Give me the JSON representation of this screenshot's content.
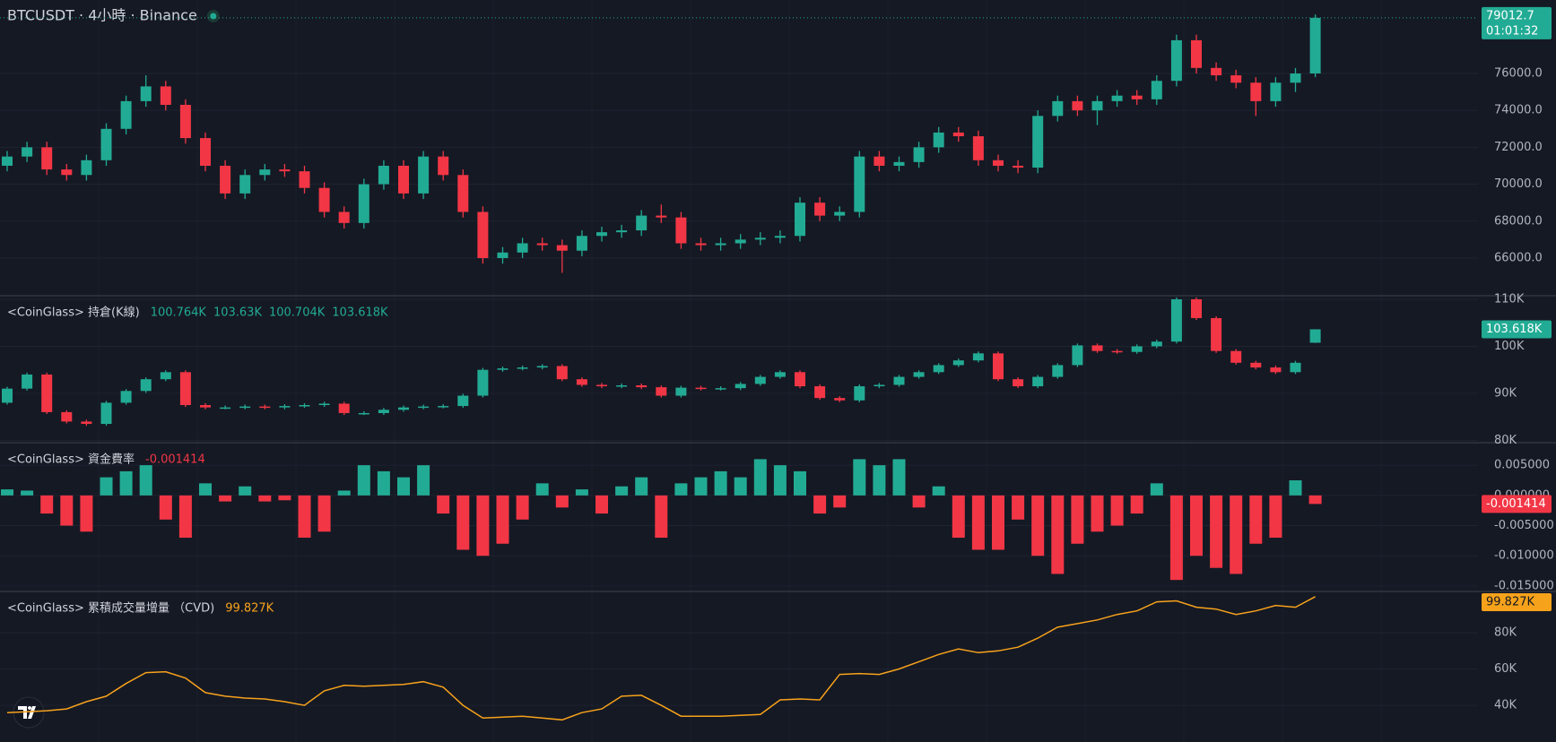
{
  "chart_data": [
    {
      "type": "candlestick",
      "title": "BTCUSDT · 4小時 · Binance",
      "countdown": "01:01:32",
      "open": [
        71000,
        71500,
        72000,
        70800,
        70500,
        71300,
        73000,
        74500,
        75300,
        74300,
        72500,
        71000,
        69500,
        70500,
        70800,
        70700,
        69800,
        68500,
        67900,
        70000,
        71000,
        69500,
        71500,
        70500,
        68500,
        66000,
        66300,
        66800,
        66700,
        66400,
        67200,
        67400,
        67500,
        68300,
        68200,
        66800,
        66700,
        66800,
        67000,
        67100,
        67200,
        69000,
        68300,
        68500,
        71500,
        71000,
        71200,
        72000,
        72800,
        72600,
        71300,
        71000,
        70900,
        73700,
        74500,
        74000,
        74500,
        74800,
        74600,
        75600,
        77800,
        76300,
        75900,
        75500,
        74500,
        75500,
        76000
      ],
      "high": [
        71800,
        72300,
        72300,
        71100,
        71600,
        73300,
        74800,
        75900,
        75600,
        74600,
        72800,
        71300,
        70800,
        71100,
        71100,
        71000,
        70100,
        68800,
        70300,
        71300,
        71300,
        71800,
        71800,
        70800,
        68800,
        66600,
        67100,
        67100,
        67000,
        67500,
        67700,
        67800,
        68600,
        68900,
        68500,
        67100,
        67100,
        67300,
        67400,
        67500,
        69300,
        69300,
        68800,
        71800,
        71800,
        71500,
        72300,
        73100,
        73100,
        72900,
        71600,
        71300,
        74000,
        74800,
        74800,
        74800,
        75100,
        75100,
        75900,
        78100,
        78100,
        76600,
        76200,
        75800,
        75800,
        76300,
        79200
      ],
      "low": [
        70700,
        71200,
        70500,
        70200,
        70200,
        71000,
        72700,
        74200,
        74000,
        72200,
        70700,
        69200,
        69200,
        70200,
        70400,
        69500,
        68200,
        67600,
        67600,
        69700,
        69200,
        69200,
        70200,
        68200,
        65700,
        65700,
        66000,
        66400,
        65200,
        66100,
        66900,
        67100,
        67200,
        67900,
        66500,
        66400,
        66400,
        66500,
        66700,
        66800,
        66900,
        68000,
        68000,
        68200,
        70700,
        70700,
        70900,
        71700,
        72300,
        71000,
        70700,
        70600,
        70600,
        73400,
        73700,
        73200,
        74200,
        74300,
        74300,
        75300,
        76000,
        75600,
        75200,
        73700,
        74200,
        75000,
        75800
      ],
      "close": [
        71500,
        72000,
        70800,
        70500,
        71300,
        73000,
        74500,
        75300,
        74300,
        72500,
        71000,
        69500,
        70500,
        70800,
        70700,
        69800,
        68500,
        67900,
        70000,
        71000,
        69500,
        71500,
        70500,
        68500,
        66000,
        66300,
        66800,
        66700,
        66400,
        67200,
        67400,
        67500,
        68300,
        68200,
        66800,
        66700,
        66800,
        67000,
        67100,
        67200,
        69000,
        68300,
        68500,
        71500,
        71000,
        71200,
        72000,
        72800,
        72600,
        71300,
        71000,
        70900,
        73700,
        74500,
        74000,
        74500,
        74800,
        74600,
        75600,
        77800,
        76300,
        75900,
        75500,
        74500,
        75500,
        76000,
        79012.7
      ],
      "up_color": "#22ab94",
      "down_color": "#f23645",
      "grid": true,
      "ylim": [
        63960,
        79980
      ],
      "yticks": [
        {
          "value": 66000,
          "label": "66000.0"
        },
        {
          "value": 68000,
          "label": "68000.0"
        },
        {
          "value": 70000,
          "label": "70000.0"
        },
        {
          "value": 72000,
          "label": "72000.0"
        },
        {
          "value": 74000,
          "label": "74000.0"
        },
        {
          "value": 76000,
          "label": "76000.0"
        }
      ]
    },
    {
      "type": "candlestick",
      "title": "<CoinGlass> 持倉(K線)",
      "last_labels": [
        "100.764K",
        "103.63K",
        "100.704K",
        "103.618K"
      ],
      "open": [
        88000,
        91000,
        94000,
        86000,
        84000,
        83500,
        88000,
        90500,
        93000,
        94500,
        87500,
        87000,
        87000,
        87200,
        87000,
        87300,
        87500,
        87800,
        85800,
        85800,
        86500,
        87000,
        87200,
        87300,
        89500,
        95000,
        95300,
        95500,
        95800,
        93000,
        91800,
        91500,
        91700,
        91300,
        89500,
        91200,
        91000,
        91100,
        92000,
        93500,
        94500,
        91500,
        89000,
        88500,
        91500,
        91800,
        93500,
        94500,
        96000,
        97000,
        98500,
        93000,
        91500,
        93500,
        96000,
        100200,
        99000,
        98800,
        100000,
        101000,
        110000,
        106000,
        99000,
        96500,
        95500,
        94500,
        100764
      ],
      "high": [
        91400,
        94400,
        94400,
        86400,
        84400,
        88400,
        90900,
        93400,
        94900,
        94900,
        87900,
        87400,
        87600,
        87600,
        87700,
        87900,
        88200,
        88200,
        86200,
        86900,
        87400,
        87600,
        87700,
        89900,
        95400,
        95700,
        95900,
        96200,
        96200,
        93400,
        92200,
        92100,
        92100,
        91700,
        91600,
        91600,
        91500,
        92400,
        93900,
        94900,
        94900,
        91900,
        89400,
        91900,
        92200,
        93900,
        94900,
        96400,
        97400,
        98900,
        98900,
        93400,
        93900,
        96400,
        100600,
        100600,
        99400,
        100400,
        101400,
        110400,
        110400,
        106400,
        99400,
        96900,
        95900,
        96900,
        103630
      ],
      "low": [
        87600,
        90600,
        85600,
        83600,
        83100,
        83100,
        87600,
        90100,
        92600,
        87100,
        86600,
        86600,
        86600,
        86600,
        86600,
        86900,
        87100,
        85400,
        85400,
        85400,
        86100,
        86600,
        86800,
        86900,
        89100,
        94600,
        94900,
        95100,
        92600,
        91400,
        91100,
        91100,
        90900,
        89100,
        89100,
        90600,
        90600,
        90700,
        91600,
        93100,
        91100,
        88600,
        88100,
        88100,
        91100,
        91400,
        93100,
        94100,
        95600,
        96600,
        92600,
        91100,
        91100,
        93100,
        95600,
        98600,
        98400,
        98400,
        99600,
        100600,
        105600,
        98600,
        96100,
        95100,
        94100,
        94100,
        100704
      ],
      "close": [
        91000,
        94000,
        86000,
        84000,
        83500,
        88000,
        90500,
        93000,
        94500,
        87500,
        87000,
        87000,
        87200,
        87000,
        87300,
        87500,
        87800,
        85800,
        85800,
        86500,
        87000,
        87200,
        87300,
        89500,
        95000,
        95300,
        95500,
        95800,
        93000,
        91800,
        91500,
        91700,
        91300,
        89500,
        91200,
        91000,
        91100,
        92000,
        93500,
        94500,
        91500,
        89000,
        88500,
        91500,
        91800,
        93500,
        94500,
        96000,
        97000,
        98500,
        93000,
        91500,
        93500,
        96000,
        100200,
        99000,
        98800,
        100000,
        101000,
        110000,
        106000,
        99000,
        96500,
        95500,
        94500,
        96500,
        103618
      ],
      "up_color": "#22ab94",
      "down_color": "#f23645",
      "grid": true,
      "ylim": [
        79500,
        110760
      ],
      "yticks": [
        {
          "value": 80000,
          "label": "80K"
        },
        {
          "value": 90000,
          "label": "90K"
        },
        {
          "value": 100000,
          "label": "100K"
        },
        {
          "value": 110000,
          "label": "110K"
        }
      ]
    },
    {
      "type": "bar",
      "title": "<CoinGlass> 資金費率",
      "values": [
        0.001,
        0.0008,
        -0.003,
        -0.005,
        -0.006,
        0.003,
        0.004,
        0.005,
        -0.004,
        -0.007,
        0.002,
        -0.001,
        0.0015,
        -0.001,
        -0.0008,
        -0.007,
        -0.006,
        0.0008,
        0.005,
        0.004,
        0.003,
        0.005,
        -0.003,
        -0.009,
        -0.01,
        -0.008,
        -0.004,
        0.002,
        -0.002,
        0.001,
        -0.003,
        0.0015,
        0.003,
        -0.007,
        0.002,
        0.003,
        0.004,
        0.003,
        0.006,
        0.005,
        0.004,
        -0.003,
        -0.002,
        0.006,
        0.005,
        0.006,
        -0.002,
        0.0015,
        -0.007,
        -0.009,
        -0.009,
        -0.004,
        -0.01,
        -0.013,
        -0.008,
        -0.006,
        -0.005,
        -0.003,
        0.002,
        -0.014,
        -0.01,
        -0.012,
        -0.013,
        -0.008,
        -0.007,
        0.0025,
        -0.001414
      ],
      "up_color": "#22ab94",
      "down_color": "#f23645",
      "grid": true,
      "ylim": [
        -0.0159,
        0.00873
      ],
      "yticks": [
        {
          "value": -0.015,
          "label": "-0.015000"
        },
        {
          "value": -0.01,
          "label": "-0.010000"
        },
        {
          "value": -0.005,
          "label": "-0.005000"
        },
        {
          "value": 0,
          "label": "0.000000"
        },
        {
          "value": 0.005,
          "label": "0.005000"
        }
      ]
    },
    {
      "type": "line",
      "title": "<CoinGlass> 累積成交量增量 （CVD)",
      "last_label": "99.827K",
      "color": "#f7a21b",
      "grid": true,
      "values": [
        36000,
        36500,
        37000,
        38000,
        42000,
        45000,
        52000,
        58000,
        58500,
        55000,
        47000,
        45000,
        44000,
        43500,
        42000,
        40000,
        48000,
        51000,
        50500,
        51000,
        51500,
        53000,
        50000,
        40000,
        33000,
        33500,
        34000,
        33000,
        32000,
        36000,
        38000,
        45000,
        45500,
        40000,
        34000,
        34000,
        34000,
        34500,
        35000,
        43000,
        43500,
        43000,
        57000,
        57500,
        57000,
        60000,
        64000,
        68000,
        71000,
        69000,
        70000,
        72000,
        77000,
        83000,
        85000,
        87000,
        90000,
        92000,
        97000,
        97500,
        94000,
        93000,
        90000,
        92000,
        95000,
        94000,
        99827
      ],
      "ylim": [
        19800,
        102700
      ],
      "yticks": [
        {
          "value": 40000,
          "label": "40K"
        },
        {
          "value": 60000,
          "label": "60K"
        },
        {
          "value": 80000,
          "label": "80K"
        }
      ]
    }
  ]
}
